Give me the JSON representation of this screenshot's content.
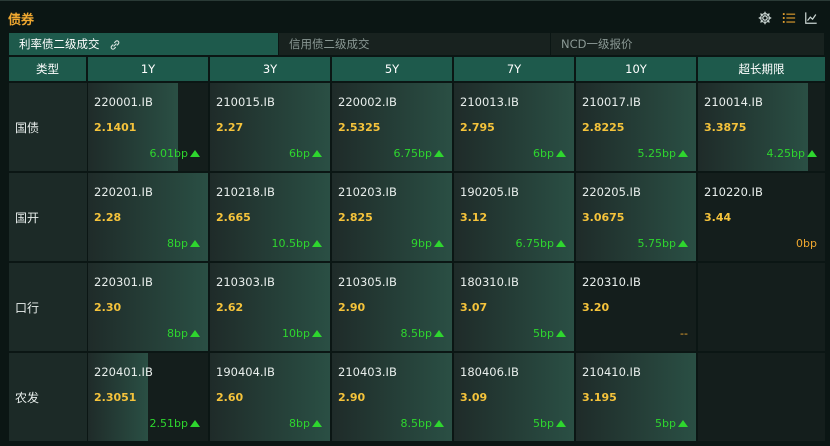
{
  "header": {
    "title": "债券"
  },
  "tabs": [
    {
      "label": "利率债二级成交",
      "active": true
    },
    {
      "label": "信用债二级成交",
      "active": false
    },
    {
      "label": "NCD一级报价",
      "active": false
    }
  ],
  "columns": [
    "类型",
    "1Y",
    "3Y",
    "5Y",
    "7Y",
    "10Y",
    "超长期限"
  ],
  "rows": [
    {
      "label": "国债",
      "cells": [
        {
          "code": "220001.IB",
          "yield": "2.1401",
          "chg": "6.01bp",
          "dir": "up",
          "fill": 0.75
        },
        {
          "code": "210015.IB",
          "yield": "2.27",
          "chg": "6bp",
          "dir": "up",
          "fill": 1.0
        },
        {
          "code": "220002.IB",
          "yield": "2.5325",
          "chg": "6.75bp",
          "dir": "up",
          "fill": 1.0
        },
        {
          "code": "210013.IB",
          "yield": "2.795",
          "chg": "6bp",
          "dir": "up",
          "fill": 1.0
        },
        {
          "code": "210017.IB",
          "yield": "2.8225",
          "chg": "5.25bp",
          "dir": "up",
          "fill": 1.0
        },
        {
          "code": "210014.IB",
          "yield": "3.3875",
          "chg": "4.25bp",
          "dir": "up",
          "fill": 0.87
        }
      ]
    },
    {
      "label": "国开",
      "cells": [
        {
          "code": "220201.IB",
          "yield": "2.28",
          "chg": "8bp",
          "dir": "up",
          "fill": 1.0
        },
        {
          "code": "210218.IB",
          "yield": "2.665",
          "chg": "10.5bp",
          "dir": "up",
          "fill": 1.0
        },
        {
          "code": "210203.IB",
          "yield": "2.825",
          "chg": "9bp",
          "dir": "up",
          "fill": 1.0
        },
        {
          "code": "190205.IB",
          "yield": "3.12",
          "chg": "6.75bp",
          "dir": "up",
          "fill": 1.0
        },
        {
          "code": "220205.IB",
          "yield": "3.0675",
          "chg": "5.75bp",
          "dir": "up",
          "fill": 1.0
        },
        {
          "code": "210220.IB",
          "yield": "3.44",
          "chg": "0bp",
          "dir": "zero",
          "fill": 0
        }
      ]
    },
    {
      "label": "口行",
      "cells": [
        {
          "code": "220301.IB",
          "yield": "2.30",
          "chg": "8bp",
          "dir": "up",
          "fill": 1.0
        },
        {
          "code": "210303.IB",
          "yield": "2.62",
          "chg": "10bp",
          "dir": "up",
          "fill": 1.0
        },
        {
          "code": "210305.IB",
          "yield": "2.90",
          "chg": "8.5bp",
          "dir": "up",
          "fill": 1.0
        },
        {
          "code": "180310.IB",
          "yield": "3.07",
          "chg": "5bp",
          "dir": "up",
          "fill": 1.0
        },
        {
          "code": "220310.IB",
          "yield": "3.20",
          "chg": "--",
          "dir": "none",
          "fill": 0
        },
        null
      ]
    },
    {
      "label": "农发",
      "cells": [
        {
          "code": "220401.IB",
          "yield": "2.3051",
          "chg": "2.51bp",
          "dir": "up",
          "fill": 0.5
        },
        {
          "code": "190404.IB",
          "yield": "2.60",
          "chg": "8bp",
          "dir": "up",
          "fill": 1.0
        },
        {
          "code": "210403.IB",
          "yield": "2.90",
          "chg": "8.5bp",
          "dir": "up",
          "fill": 1.0
        },
        {
          "code": "180406.IB",
          "yield": "3.09",
          "chg": "5bp",
          "dir": "up",
          "fill": 1.0
        },
        {
          "code": "210410.IB",
          "yield": "3.195",
          "chg": "5bp",
          "dir": "up",
          "fill": 1.0
        },
        null
      ]
    }
  ],
  "icons": {
    "settings": "gear-icon",
    "list": "list-icon",
    "chart": "line-chart-icon",
    "link": "link-icon"
  },
  "colors": {
    "accent": "#f0a830",
    "header_bg": "#1e5a4c",
    "up": "#2ed62e",
    "yield": "#f5c33b"
  }
}
